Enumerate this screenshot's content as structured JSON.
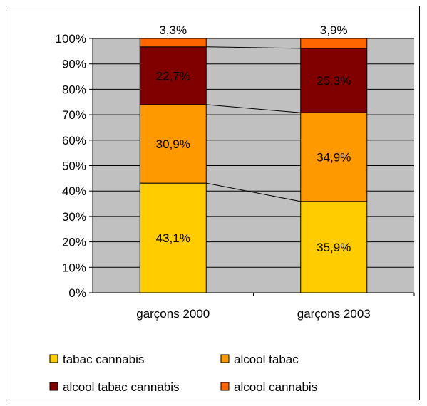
{
  "chart_data": {
    "type": "bar",
    "stacked": "percent",
    "categories": [
      "garçons 2000",
      "garçons 2003"
    ],
    "series": [
      {
        "name": "tabac cannabis",
        "color": "#FFCC00",
        "values": [
          43.1,
          35.9
        ],
        "labels": [
          "43,1%",
          "35,9%"
        ]
      },
      {
        "name": "alcool tabac",
        "color": "#FF9900",
        "values": [
          30.9,
          34.9
        ],
        "labels": [
          "30,9%",
          "34,9%"
        ]
      },
      {
        "name": "alcool tabac cannabis",
        "color": "#800000",
        "values": [
          22.7,
          25.3
        ],
        "labels": [
          "22,7%",
          "25,3%"
        ]
      },
      {
        "name": "alcool cannabis",
        "color": "#FF6600",
        "values": [
          3.3,
          3.9
        ],
        "labels": [
          "3,3%",
          "3,9%"
        ]
      }
    ],
    "yticks": [
      "0%",
      "10%",
      "20%",
      "30%",
      "40%",
      "50%",
      "60%",
      "70%",
      "80%",
      "90%",
      "100%"
    ],
    "ylim": [
      0,
      100
    ],
    "grid": true,
    "plot_background": "#C0C0C0",
    "series_lines": true,
    "legend": "bottom"
  }
}
